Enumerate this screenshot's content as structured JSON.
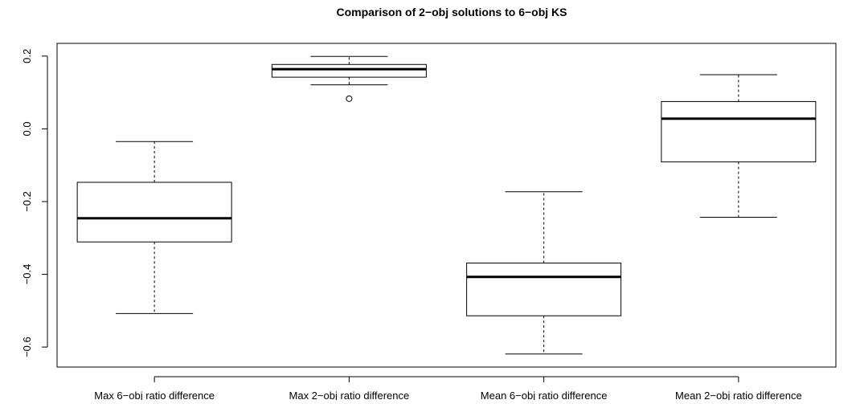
{
  "chart_data": {
    "type": "boxplot",
    "title": "Comparison of 2−obj solutions to 6−obj KS",
    "xlabel": "",
    "ylabel": "",
    "ylim": [
      -0.655,
      0.235
    ],
    "yticks": [
      0.2,
      0.0,
      -0.2,
      -0.4,
      -0.6
    ],
    "ytick_labels": [
      "0.2",
      "0.0",
      "−0.2",
      "−0.4",
      "−0.6"
    ],
    "grid": false,
    "categories": [
      "Max 6−obj ratio difference",
      "Max 2−obj ratio difference",
      "Mean 6−obj ratio difference",
      "Mean 2−obj ratio difference"
    ],
    "boxes": [
      {
        "label": "Max 6−obj ratio difference",
        "whisker_low": -0.508,
        "q1": -0.311,
        "median": -0.246,
        "q3": -0.147,
        "whisker_high": -0.035,
        "outliers": []
      },
      {
        "label": "Max 2−obj ratio difference",
        "whisker_low": 0.121,
        "q1": 0.142,
        "median": 0.164,
        "q3": 0.177,
        "whisker_high": 0.199,
        "outliers": [
          0.083
        ]
      },
      {
        "label": "Mean 6−obj ratio difference",
        "whisker_low": -0.619,
        "q1": -0.514,
        "median": -0.407,
        "q3": -0.369,
        "whisker_high": -0.173,
        "outliers": []
      },
      {
        "label": "Mean 2−obj ratio difference",
        "whisker_low": -0.243,
        "q1": -0.091,
        "median": 0.028,
        "q3": 0.075,
        "whisker_high": 0.149,
        "outliers": []
      }
    ]
  }
}
